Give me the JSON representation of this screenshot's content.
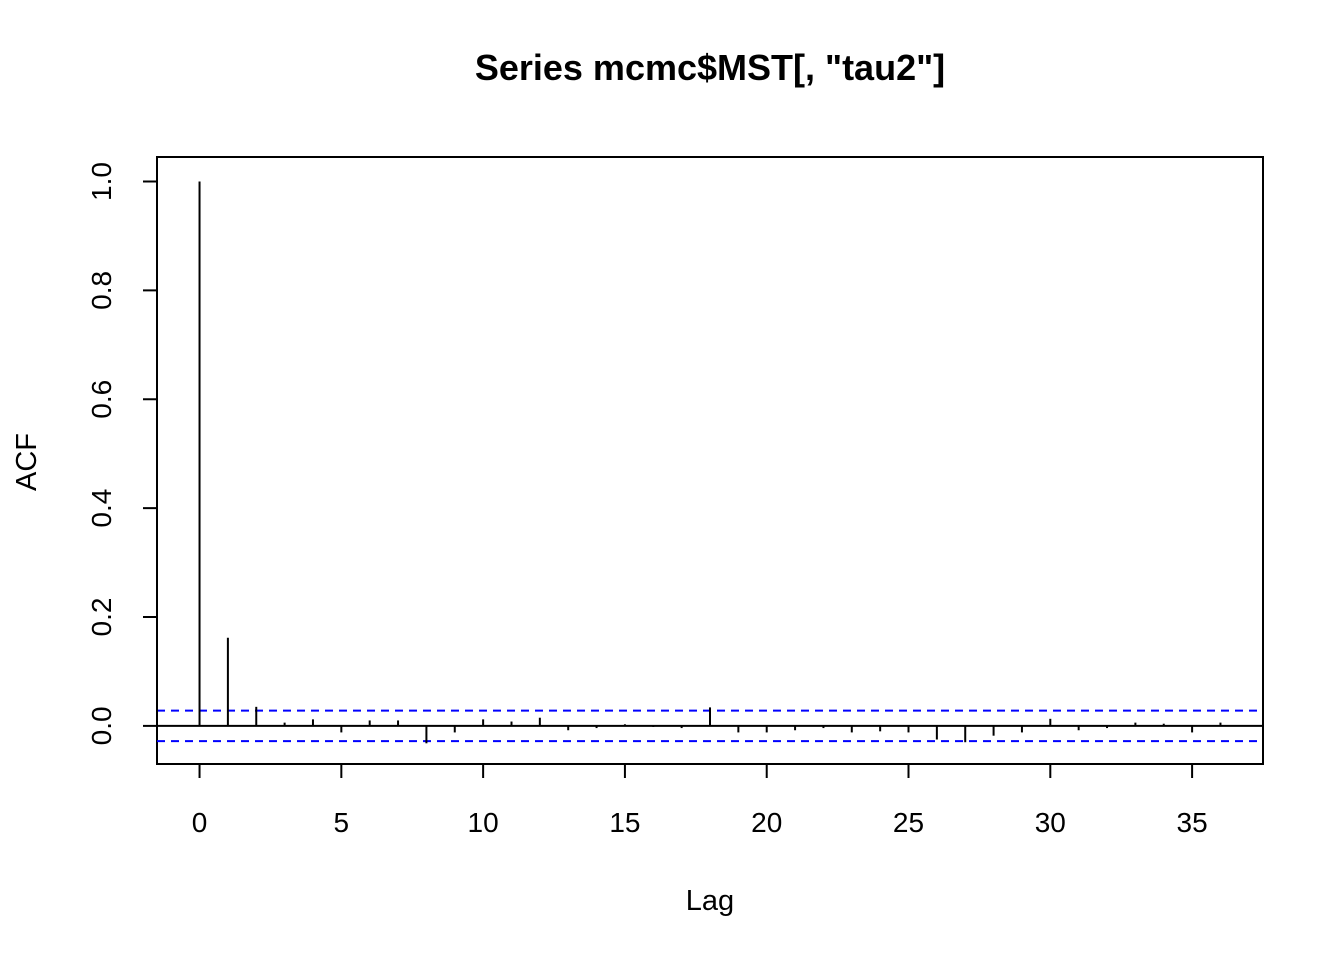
{
  "chart_data": {
    "type": "bar",
    "title": "Series  mcmc$MST[, \"tau2\"]",
    "xlabel": "Lag",
    "ylabel": "ACF",
    "xlim": [
      -1.5,
      37.5
    ],
    "ylim": [
      -0.07,
      1.045
    ],
    "x_ticks": [
      0,
      5,
      10,
      15,
      20,
      25,
      30,
      35
    ],
    "y_ticks": [
      0.0,
      0.2,
      0.4,
      0.6,
      0.8,
      1.0
    ],
    "y_tick_labels": [
      "0.0",
      "0.2",
      "0.4",
      "0.6",
      "0.8",
      "1.0"
    ],
    "ci": 0.028,
    "grid": false,
    "colors": {
      "bars": "#000000",
      "ci_line": "#0000ff",
      "zero_line": "#000000"
    },
    "lags": [
      0,
      1,
      2,
      3,
      4,
      5,
      6,
      7,
      8,
      9,
      10,
      11,
      12,
      13,
      14,
      15,
      16,
      17,
      18,
      19,
      20,
      21,
      22,
      23,
      24,
      25,
      26,
      27,
      28,
      29,
      30,
      31,
      32,
      33,
      34,
      35,
      36
    ],
    "acf": [
      1.0,
      0.162,
      0.035,
      0.006,
      0.012,
      -0.012,
      0.01,
      0.01,
      -0.032,
      -0.012,
      0.012,
      0.008,
      0.015,
      -0.008,
      -0.004,
      0.003,
      -0.002,
      -0.004,
      0.034,
      -0.012,
      -0.012,
      -0.008,
      -0.004,
      -0.012,
      -0.01,
      -0.012,
      -0.025,
      -0.03,
      -0.018,
      -0.012,
      0.013,
      -0.008,
      -0.004,
      0.006,
      0.004,
      -0.012,
      0.006
    ]
  }
}
